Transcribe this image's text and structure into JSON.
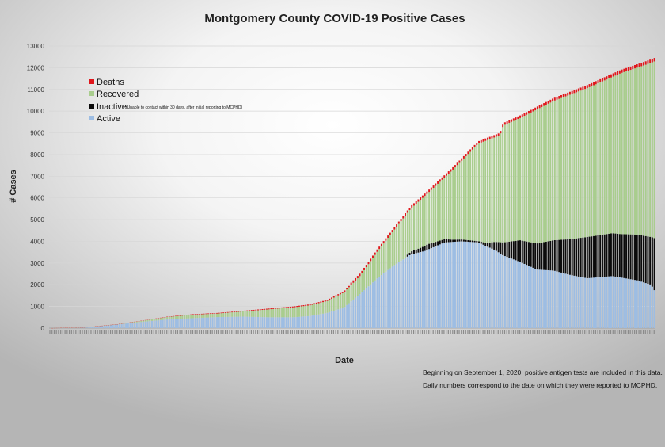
{
  "chart_data": {
    "type": "bar",
    "stacked": true,
    "title": "Montgomery County COVID-19 Positive Cases",
    "xlabel": "Date",
    "ylabel": "# Cases",
    "ylim": [
      0,
      13000
    ],
    "yticks": [
      0,
      1000,
      2000,
      3000,
      4000,
      5000,
      6000,
      7000,
      8000,
      9000,
      10000,
      11000,
      12000,
      13000
    ],
    "grid": true,
    "legend_position": "top-left",
    "legend": [
      {
        "label": "Deaths",
        "color": "#e0161b"
      },
      {
        "label": "Recovered",
        "color": "#a9cd8e"
      },
      {
        "label": "Inactive",
        "note": "(Unable to contact within 30 days, after initial reporting to MCPHD)",
        "color": "#0b0b0b"
      },
      {
        "label": "Active",
        "color": "#9dbde3"
      }
    ],
    "series_order_bottom_to_top": [
      "Active",
      "Inactive",
      "Recovered",
      "Deaths"
    ],
    "bar_count": 280,
    "keypoints": {
      "total_cases": [
        [
          0,
          0
        ],
        [
          20,
          30
        ],
        [
          40,
          180
        ],
        [
          55,
          350
        ],
        [
          70,
          530
        ],
        [
          85,
          640
        ],
        [
          100,
          700
        ],
        [
          115,
          800
        ],
        [
          130,
          900
        ],
        [
          145,
          1000
        ],
        [
          155,
          1100
        ],
        [
          165,
          1300
        ],
        [
          175,
          1700
        ],
        [
          185,
          2500
        ],
        [
          195,
          3600
        ],
        [
          205,
          4600
        ],
        [
          215,
          5600
        ],
        [
          225,
          6300
        ],
        [
          240,
          7400
        ],
        [
          255,
          8600
        ],
        [
          268,
          9000
        ],
        [
          270,
          9450
        ],
        [
          280,
          9800
        ],
        [
          300,
          10600
        ],
        [
          320,
          11200
        ],
        [
          340,
          11900
        ],
        [
          355,
          12300
        ],
        [
          360,
          12450
        ]
      ],
      "active": [
        [
          0,
          0
        ],
        [
          20,
          20
        ],
        [
          40,
          170
        ],
        [
          55,
          290
        ],
        [
          70,
          400
        ],
        [
          85,
          460
        ],
        [
          100,
          510
        ],
        [
          115,
          530
        ],
        [
          130,
          500
        ],
        [
          145,
          500
        ],
        [
          155,
          560
        ],
        [
          165,
          700
        ],
        [
          175,
          950
        ],
        [
          185,
          1600
        ],
        [
          195,
          2300
        ],
        [
          205,
          2900
        ],
        [
          215,
          3400
        ],
        [
          223,
          3550
        ],
        [
          235,
          3950
        ],
        [
          245,
          4000
        ],
        [
          255,
          3950
        ],
        [
          265,
          3600
        ],
        [
          270,
          3350
        ],
        [
          280,
          3050
        ],
        [
          290,
          2700
        ],
        [
          300,
          2650
        ],
        [
          310,
          2450
        ],
        [
          320,
          2300
        ],
        [
          335,
          2400
        ],
        [
          350,
          2200
        ],
        [
          358,
          2000
        ],
        [
          360,
          1750
        ]
      ],
      "inactive": [
        [
          0,
          0
        ],
        [
          205,
          0
        ],
        [
          212,
          0
        ],
        [
          213,
          100
        ],
        [
          225,
          250
        ],
        [
          240,
          100
        ],
        [
          255,
          60
        ],
        [
          260,
          150
        ],
        [
          270,
          600
        ],
        [
          280,
          1000
        ],
        [
          300,
          1400
        ],
        [
          320,
          1900
        ],
        [
          340,
          2000
        ],
        [
          358,
          2200
        ],
        [
          360,
          2400
        ]
      ],
      "deaths": [
        [
          0,
          0
        ],
        [
          40,
          5
        ],
        [
          80,
          20
        ],
        [
          150,
          45
        ],
        [
          200,
          70
        ],
        [
          250,
          100
        ],
        [
          300,
          130
        ],
        [
          360,
          160
        ]
      ]
    },
    "notes": [
      "Beginning on September 1, 2020, positive antigen tests are included in this data.",
      "Daily numbers correspond to the date on which they were reported to MCPHD."
    ]
  }
}
